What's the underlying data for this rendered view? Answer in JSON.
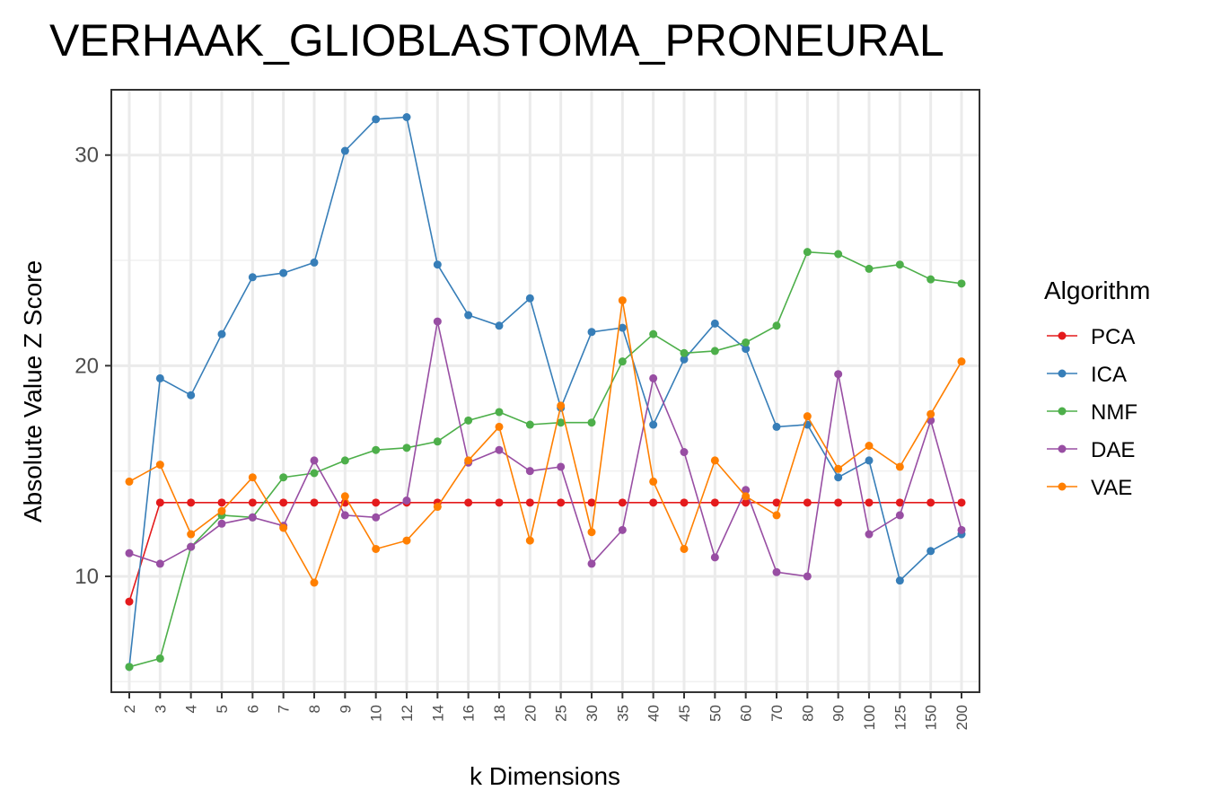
{
  "chart_data": {
    "type": "line",
    "title": "VERHAAK_GLIOBLASTOMA_PRONEURAL",
    "xlabel": "k Dimensions",
    "ylabel": "Absolute Value Z Score",
    "legend_title": "Algorithm",
    "legend_position": "right",
    "grid": true,
    "ylim": [
      4.5,
      33.1
    ],
    "yticks": [
      10,
      20,
      30
    ],
    "categories": [
      "2",
      "3",
      "4",
      "5",
      "6",
      "7",
      "8",
      "9",
      "10",
      "12",
      "14",
      "16",
      "18",
      "20",
      "25",
      "30",
      "35",
      "40",
      "45",
      "50",
      "60",
      "70",
      "80",
      "90",
      "100",
      "125",
      "150",
      "200"
    ],
    "series": [
      {
        "name": "PCA",
        "color": "#e41a1c",
        "values": [
          8.8,
          13.5,
          13.5,
          13.5,
          13.5,
          13.5,
          13.5,
          13.5,
          13.5,
          13.5,
          13.5,
          13.5,
          13.5,
          13.5,
          13.5,
          13.5,
          13.5,
          13.5,
          13.5,
          13.5,
          13.5,
          13.5,
          13.5,
          13.5,
          13.5,
          13.5,
          13.5,
          13.5
        ]
      },
      {
        "name": "ICA",
        "color": "#377eb8",
        "values": [
          5.7,
          19.4,
          18.6,
          21.5,
          24.2,
          24.4,
          24.9,
          30.2,
          31.7,
          31.8,
          24.8,
          22.4,
          21.9,
          23.2,
          18.0,
          21.6,
          21.8,
          17.2,
          20.3,
          22.0,
          20.8,
          17.1,
          17.2,
          14.7,
          15.5,
          9.8,
          11.2,
          12.0
        ]
      },
      {
        "name": "NMF",
        "color": "#4daf4a",
        "values": [
          5.7,
          6.1,
          11.4,
          12.9,
          12.8,
          14.7,
          14.9,
          15.5,
          16.0,
          16.1,
          16.4,
          17.4,
          17.8,
          17.2,
          17.3,
          17.3,
          20.2,
          21.5,
          20.6,
          20.7,
          21.1,
          21.9,
          25.4,
          25.3,
          24.6,
          24.8,
          24.1,
          23.9
        ]
      },
      {
        "name": "DAE",
        "color": "#984ea3",
        "values": [
          11.1,
          10.6,
          11.4,
          12.5,
          12.8,
          12.4,
          15.5,
          12.9,
          12.8,
          13.6,
          22.1,
          15.4,
          16.0,
          15.0,
          15.2,
          10.6,
          12.2,
          19.4,
          15.9,
          10.9,
          14.1,
          10.2,
          10.0,
          19.6,
          12.0,
          12.9,
          17.4,
          12.2
        ]
      },
      {
        "name": "VAE",
        "color": "#ff7f00",
        "values": [
          14.5,
          15.3,
          12.0,
          13.1,
          14.7,
          12.3,
          9.7,
          13.8,
          11.3,
          11.7,
          13.3,
          15.5,
          17.1,
          11.7,
          18.1,
          12.1,
          23.1,
          14.5,
          11.3,
          15.5,
          13.8,
          12.9,
          17.6,
          15.1,
          16.2,
          15.2,
          17.7,
          20.2
        ]
      }
    ]
  }
}
